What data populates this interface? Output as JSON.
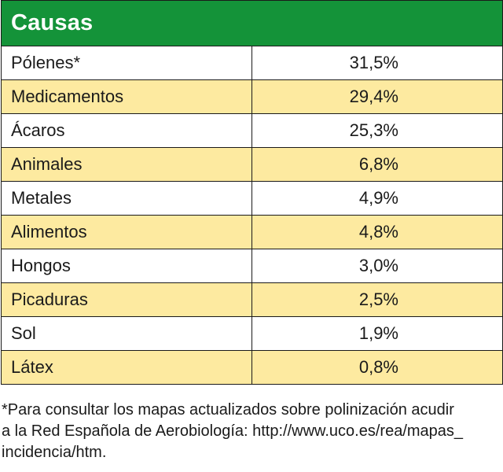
{
  "chart_data": {
    "type": "table",
    "header": "Causas",
    "rows": [
      {
        "cause": "Pólenes*",
        "value": "31,5%",
        "numeric": 31.5
      },
      {
        "cause": "Medicamentos",
        "value": "29,4%",
        "numeric": 29.4
      },
      {
        "cause": "Ácaros",
        "value": "25,3%",
        "numeric": 25.3
      },
      {
        "cause": "Animales",
        "value": "6,8%",
        "numeric": 6.8
      },
      {
        "cause": "Metales",
        "value": "4,9%",
        "numeric": 4.9
      },
      {
        "cause": "Alimentos",
        "value": "4,8%",
        "numeric": 4.8
      },
      {
        "cause": "Hongos",
        "value": "3,0%",
        "numeric": 3.0
      },
      {
        "cause": "Picaduras",
        "value": "2,5%",
        "numeric": 2.5
      },
      {
        "cause": "Sol",
        "value": "1,9%",
        "numeric": 1.9
      },
      {
        "cause": "Látex",
        "value": "0,8%",
        "numeric": 0.8
      }
    ]
  },
  "footnote": {
    "lines": [
      "*Para consultar los mapas actualizados sobre polinización acudir",
      "a la Red Española de Aerobiología: http://www.uco.es/rea/mapas_",
      "incidencia/htm."
    ]
  },
  "colors": {
    "header_bg": "#149339",
    "header_text": "#ffffff",
    "alt_row_bg": "#fdeaa0",
    "plain_row_bg": "#ffffff",
    "border": "#1a1a1a"
  }
}
